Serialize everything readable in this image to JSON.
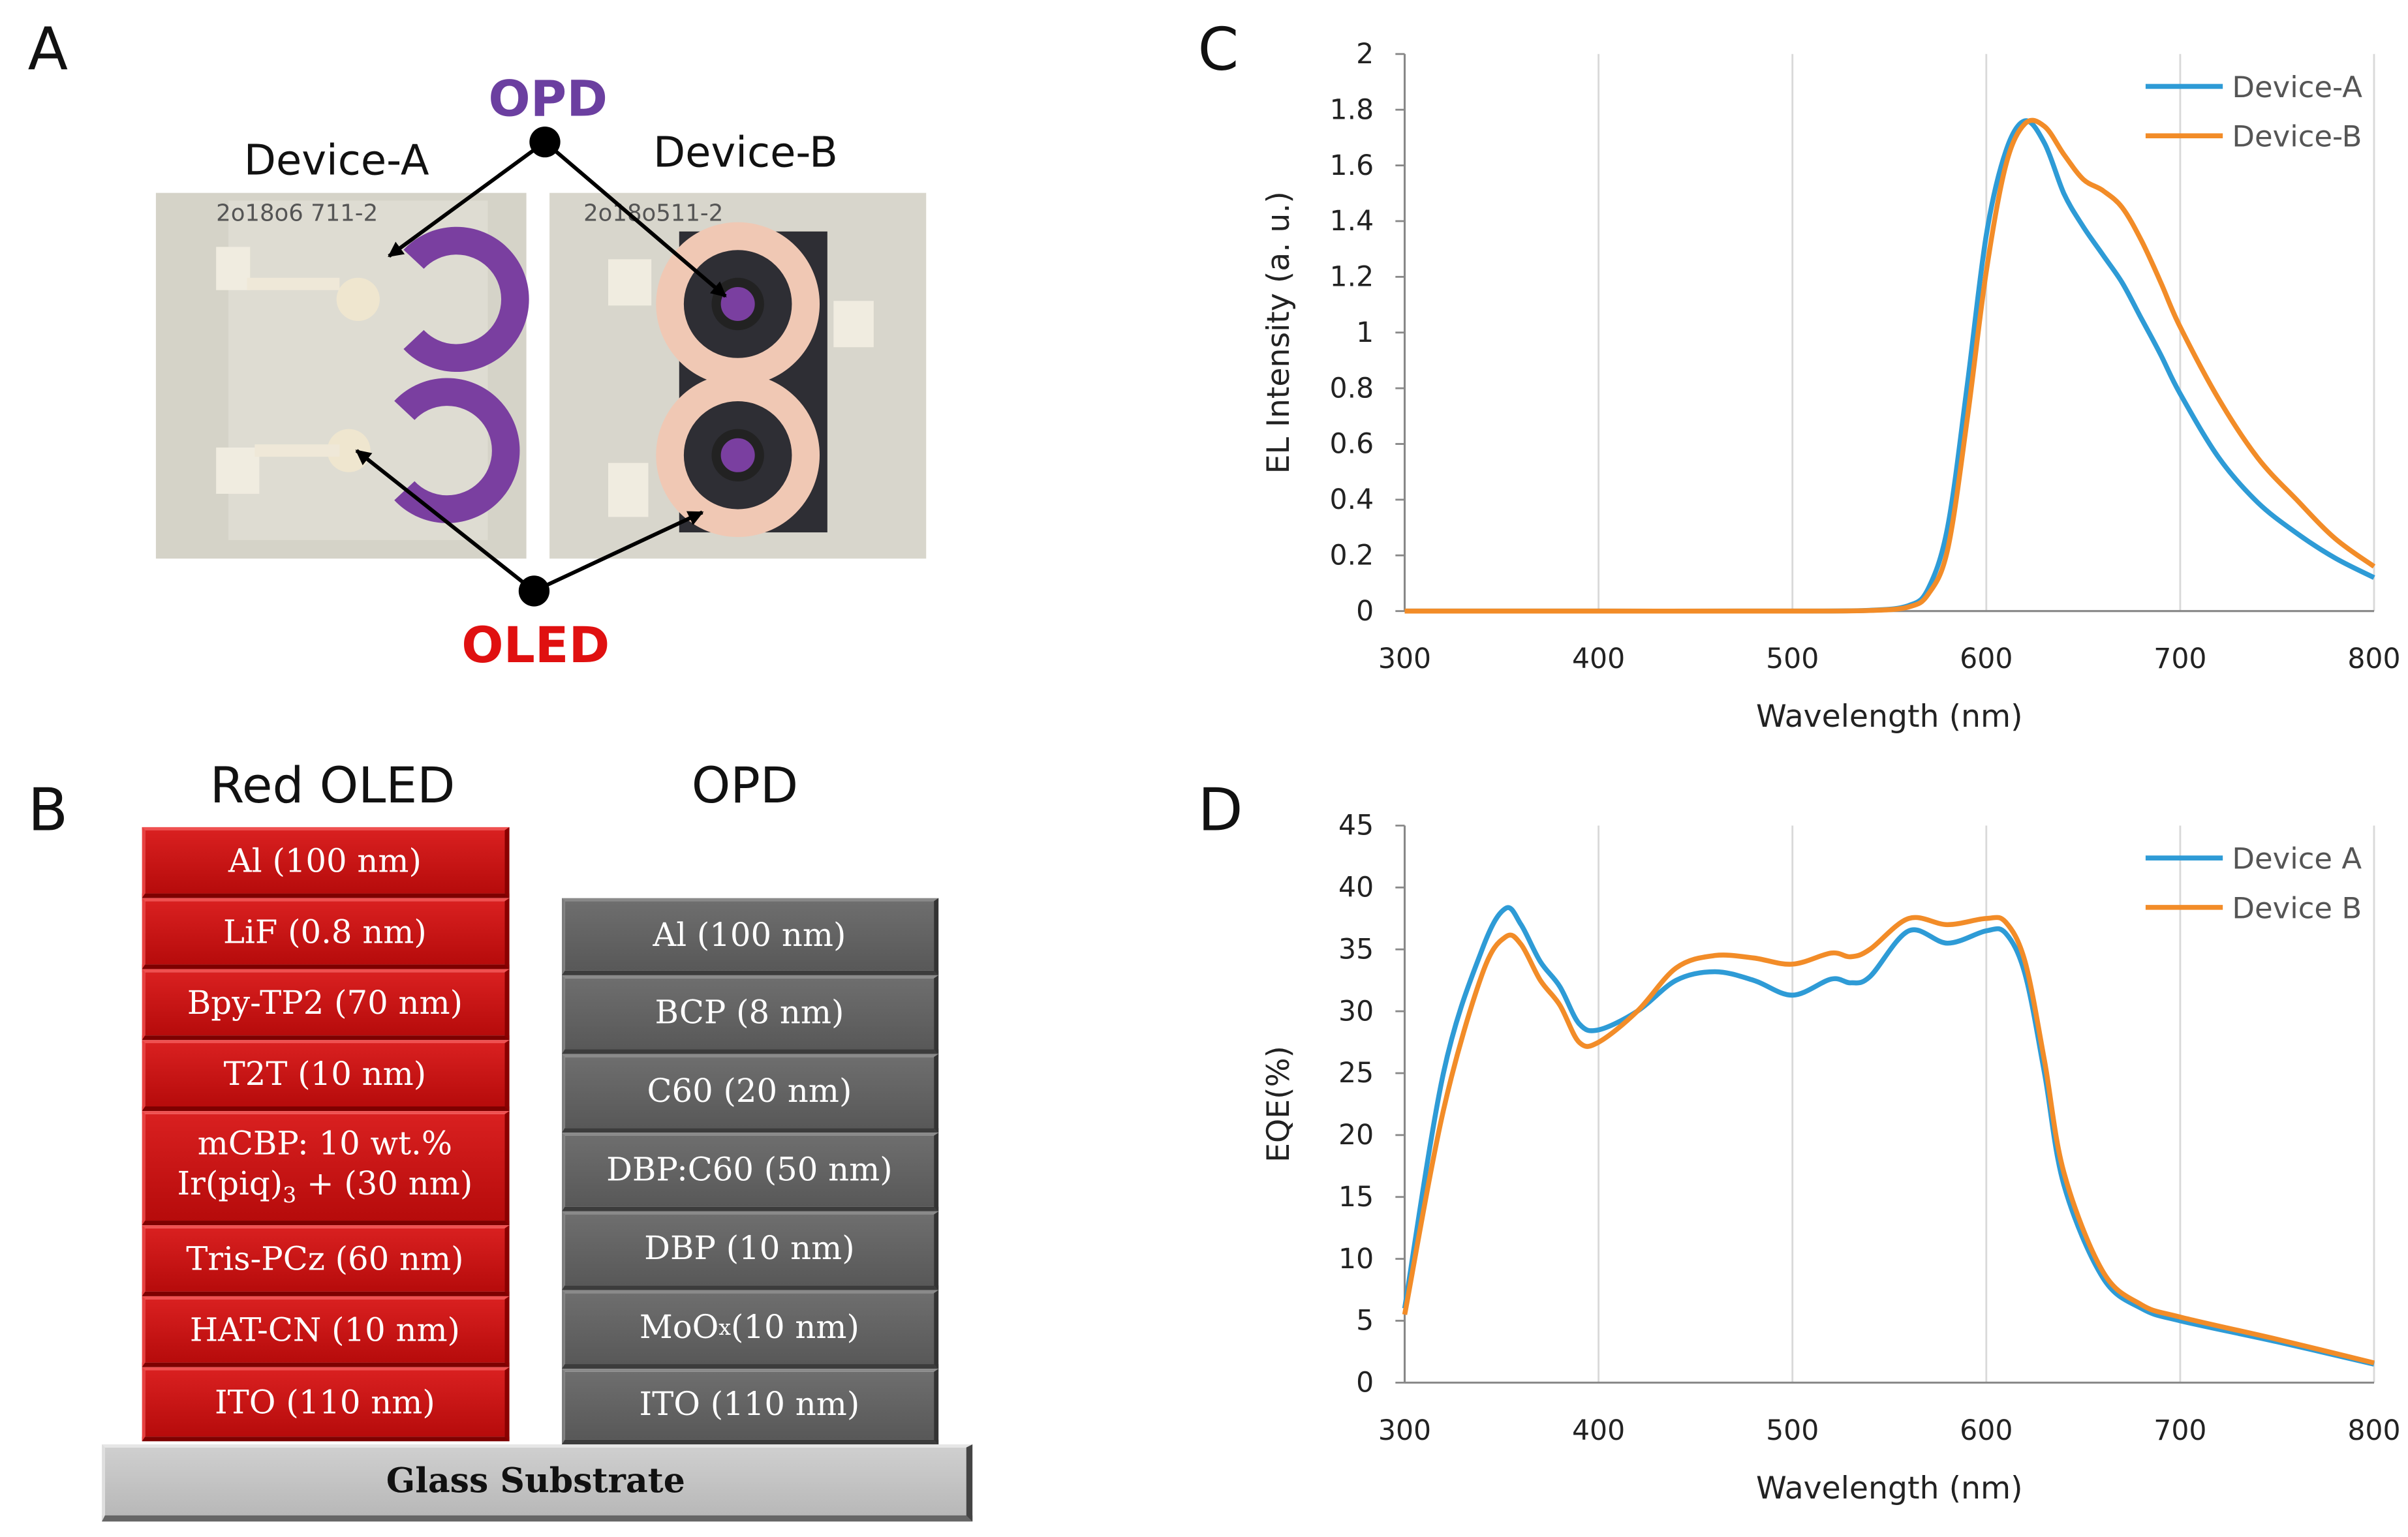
{
  "panels": {
    "a": "A",
    "b": "B",
    "c": "C",
    "d": "D"
  },
  "photo": {
    "opd_label": "OPD",
    "oled_label": "OLED",
    "device_a_label": "Device-A",
    "device_b_label": "Device-B",
    "sample_a_marking": "2o18o6 711-2",
    "sample_b_marking": "2o18o511-2"
  },
  "stack": {
    "oled_title": "Red OLED",
    "opd_title": "OPD",
    "oled_layers": [
      {
        "label": "Al (100 nm)"
      },
      {
        "label": "LiF (0.8 nm)"
      },
      {
        "label": "Bpy-TP2 (70 nm)"
      },
      {
        "label": "T2T (10 nm)"
      },
      {
        "label": "mCBP: 10 wt.%",
        "label2a": "Ir(piq)",
        "label2sub": "3",
        "label2b": " + (30 nm)"
      },
      {
        "label": "Tris-PCz (60 nm)"
      },
      {
        "label": "HAT-CN (10 nm)"
      },
      {
        "label": "ITO (110 nm)"
      }
    ],
    "opd_layers": [
      {
        "label": "Al (100 nm)"
      },
      {
        "label": "BCP (8 nm)"
      },
      {
        "label": "C60 (20 nm)"
      },
      {
        "label": "DBP:C60 (50 nm)"
      },
      {
        "label": "DBP (10 nm)"
      },
      {
        "label": "MoO",
        "sub": "x",
        "tail": " (10 nm)"
      },
      {
        "label": "ITO (110 nm)"
      }
    ],
    "substrate": "Glass Substrate",
    "colors": {
      "oled": "#c81414",
      "opd": "#626262",
      "glass": "#c4c4c4"
    }
  },
  "chart_data": [
    {
      "id": "C",
      "type": "line",
      "title": "",
      "xlabel": "Wavelength (nm)",
      "ylabel": "EL Intensity (a. u.)",
      "xlim": [
        300,
        800
      ],
      "ylim": [
        0,
        2
      ],
      "xticks": [
        "300",
        "400",
        "500",
        "600",
        "700",
        "800"
      ],
      "yticks": [
        "0",
        "0.2",
        "0.4",
        "0.6",
        "0.8",
        "1",
        "1.2",
        "1.4",
        "1.6",
        "1.8",
        "2"
      ],
      "grid": "vertical",
      "legend": "top-right",
      "series": [
        {
          "name": "Device-A",
          "color": "#2e9bd6",
          "x": [
            300,
            400,
            500,
            540,
            560,
            570,
            580,
            590,
            600,
            610,
            620,
            630,
            640,
            650,
            660,
            670,
            680,
            690,
            700,
            720,
            740,
            760,
            780,
            800
          ],
          "y": [
            0,
            0,
            0,
            0.003,
            0.02,
            0.08,
            0.3,
            0.8,
            1.35,
            1.65,
            1.76,
            1.68,
            1.5,
            1.38,
            1.28,
            1.18,
            1.05,
            0.92,
            0.78,
            0.55,
            0.39,
            0.28,
            0.19,
            0.12
          ]
        },
        {
          "name": "Device-B",
          "color": "#f28c28",
          "x": [
            300,
            400,
            500,
            540,
            560,
            570,
            580,
            590,
            600,
            610,
            620,
            630,
            640,
            650,
            660,
            670,
            680,
            690,
            700,
            720,
            740,
            760,
            780,
            800
          ],
          "y": [
            0,
            0,
            0,
            0.002,
            0.015,
            0.06,
            0.22,
            0.68,
            1.22,
            1.6,
            1.75,
            1.74,
            1.64,
            1.55,
            1.51,
            1.45,
            1.33,
            1.18,
            1.02,
            0.76,
            0.55,
            0.4,
            0.26,
            0.16
          ]
        }
      ]
    },
    {
      "id": "D",
      "type": "line",
      "title": "",
      "xlabel": "Wavelength (nm)",
      "ylabel": "EQE(%)",
      "xlim": [
        300,
        800
      ],
      "ylim": [
        0,
        45
      ],
      "xticks": [
        "300",
        "400",
        "500",
        "600",
        "700",
        "800"
      ],
      "yticks": [
        "0",
        "5",
        "10",
        "15",
        "20",
        "25",
        "30",
        "35",
        "40",
        "45"
      ],
      "grid": "vertical",
      "legend": "top-right",
      "series": [
        {
          "name": "Device A",
          "color": "#2e9bd6",
          "x": [
            300,
            320,
            340,
            352,
            360,
            370,
            380,
            390,
            400,
            420,
            440,
            460,
            480,
            500,
            520,
            530,
            540,
            560,
            580,
            600,
            610,
            620,
            630,
            640,
            660,
            680,
            700,
            750,
            800
          ],
          "y": [
            6,
            25,
            35,
            38.3,
            37,
            34,
            32,
            29,
            28.5,
            30,
            32.5,
            33.2,
            32.5,
            31.3,
            32.6,
            32.3,
            32.8,
            36.5,
            35.5,
            36.5,
            36.3,
            33,
            25,
            16,
            8.5,
            6,
            5,
            3.3,
            1.5
          ]
        },
        {
          "name": "Device B",
          "color": "#f28c28",
          "x": [
            300,
            320,
            340,
            352,
            360,
            370,
            380,
            390,
            400,
            420,
            440,
            460,
            480,
            500,
            520,
            530,
            540,
            560,
            580,
            600,
            610,
            620,
            630,
            640,
            660,
            680,
            700,
            750,
            800
          ],
          "y": [
            5.5,
            22,
            33,
            36,
            35.4,
            32.5,
            30.5,
            27.5,
            27.5,
            30,
            33.5,
            34.5,
            34.3,
            33.8,
            34.7,
            34.4,
            35,
            37.5,
            37,
            37.5,
            37.2,
            34,
            26,
            17,
            9,
            6.3,
            5.3,
            3.5,
            1.6
          ]
        }
      ]
    }
  ]
}
